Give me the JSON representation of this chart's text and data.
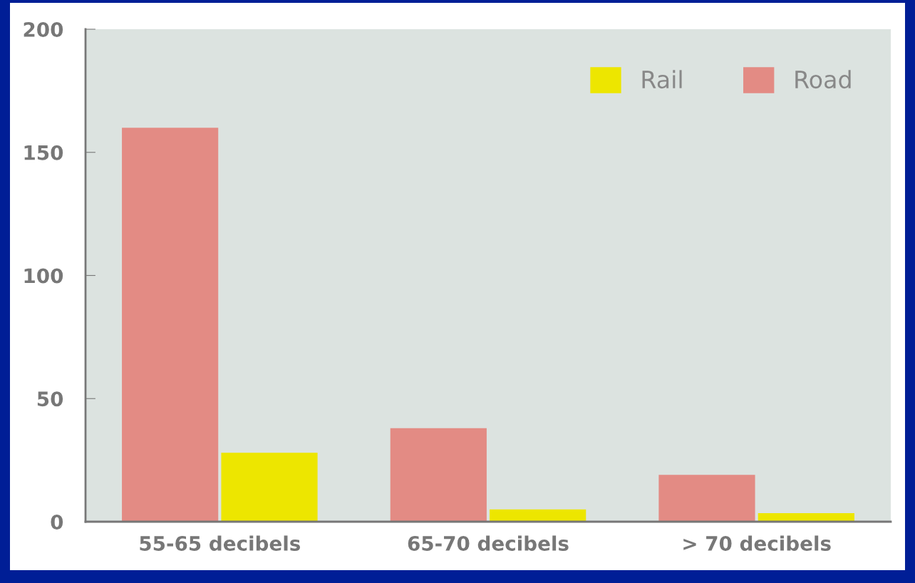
{
  "chart_data": {
    "type": "bar",
    "categories": [
      "55-65 decibels",
      "65-70 decibels",
      "> 70 decibels"
    ],
    "series": [
      {
        "name": "Road",
        "color": "#e38b84",
        "values": [
          160,
          38,
          19
        ]
      },
      {
        "name": "Rail",
        "color": "#ede600",
        "values": [
          28,
          5,
          3.5
        ]
      }
    ],
    "ylim": [
      0,
      200
    ],
    "yticks": [
      0,
      50,
      100,
      150,
      200
    ],
    "grid": false,
    "legend": "top right"
  }
}
